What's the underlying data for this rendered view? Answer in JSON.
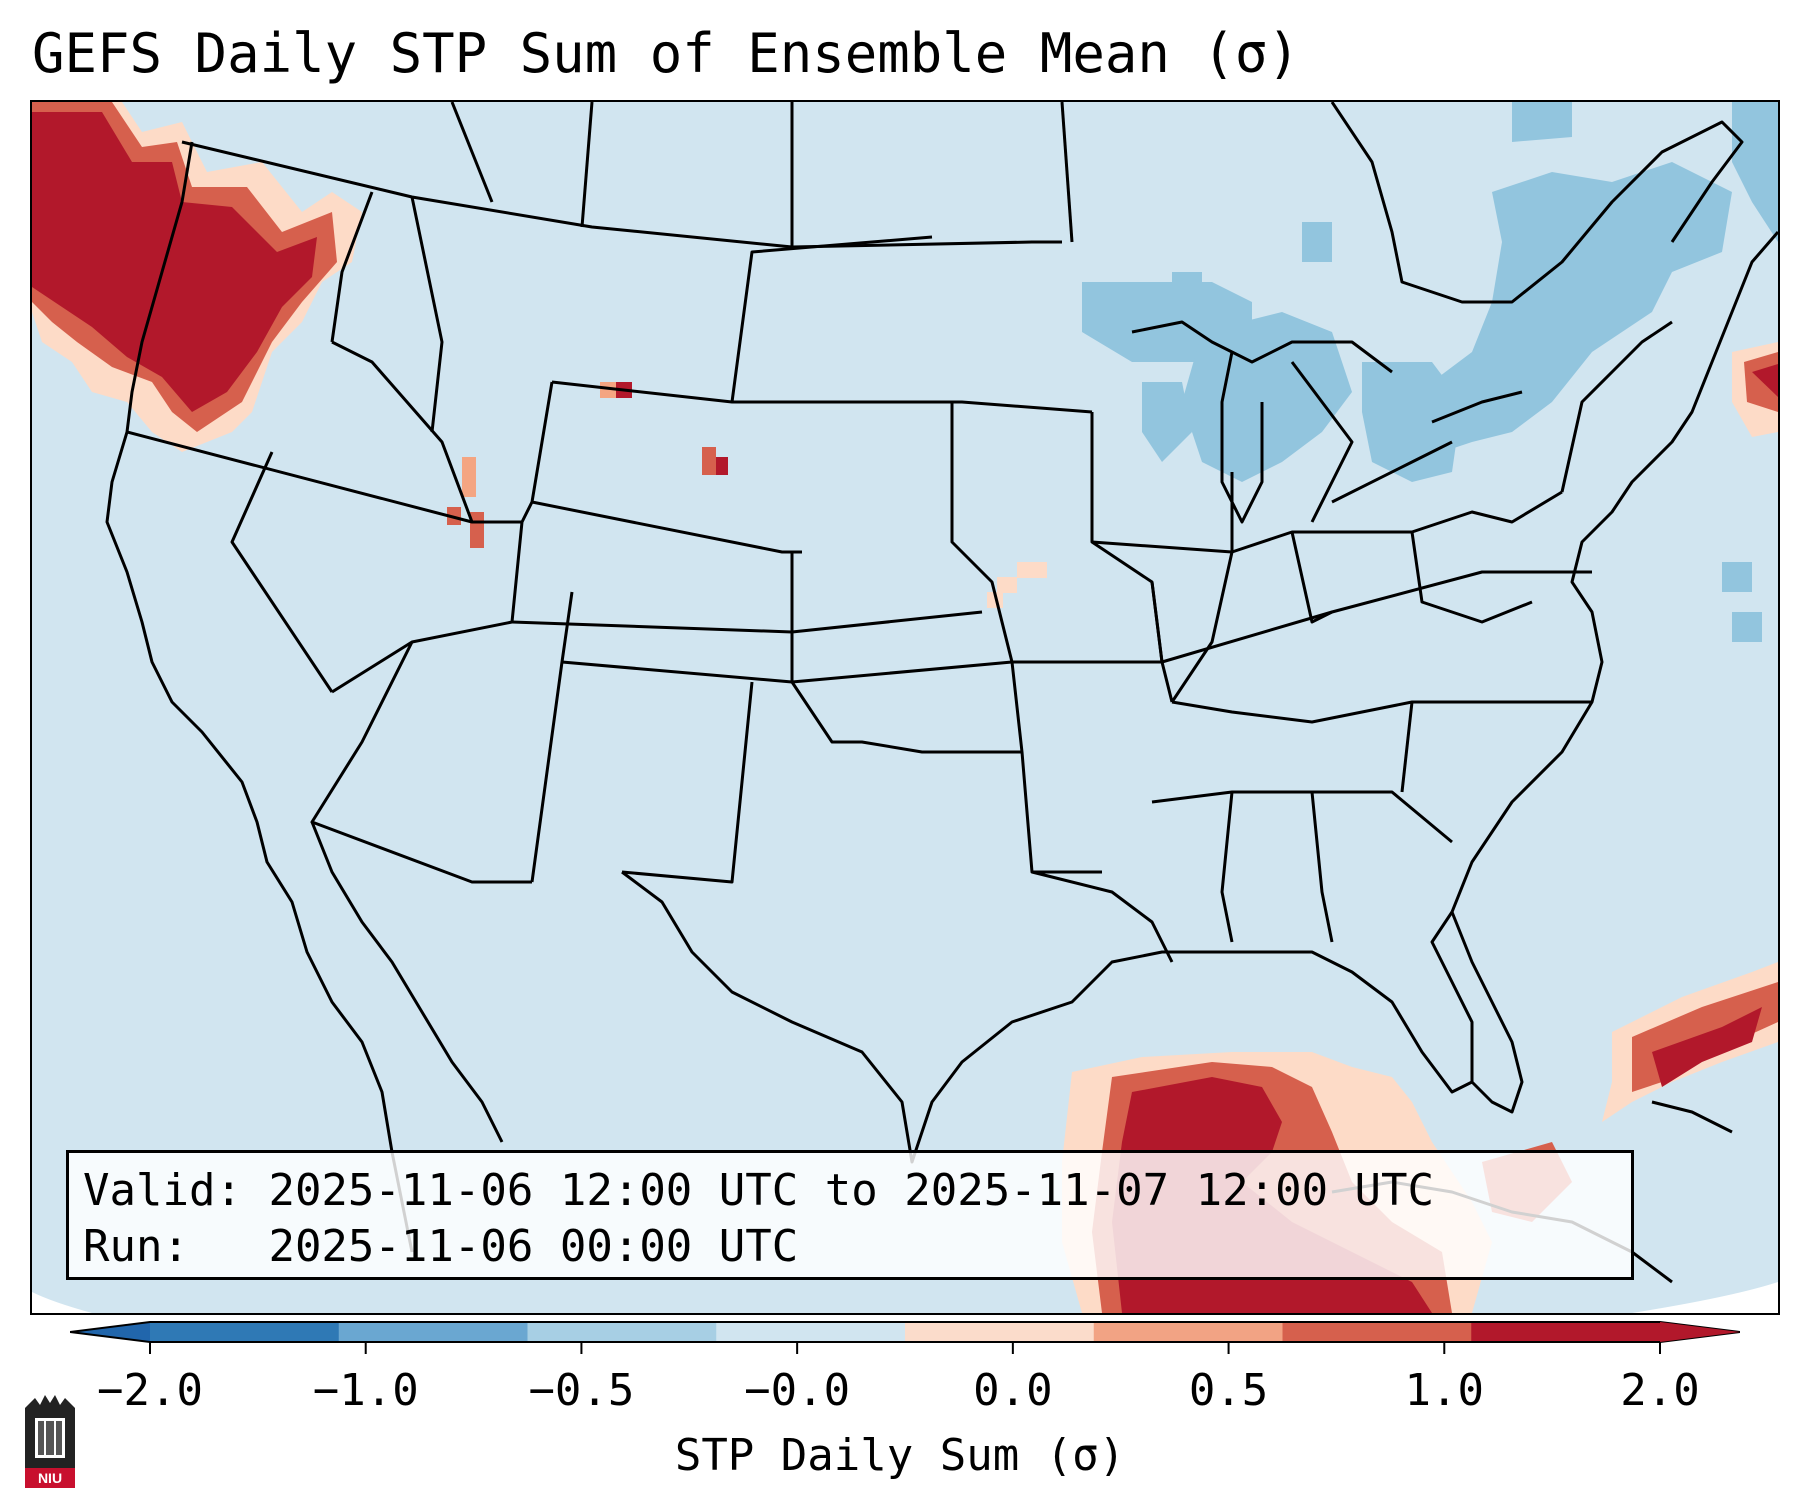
{
  "title": "GEFS Daily STP Sum of Ensemble Mean (σ)",
  "valid_label": "Valid:",
  "valid_range": "2025-11-06 12:00 UTC to 2025-11-07 12:00 UTC",
  "run_label": "Run:",
  "run_time": "2025-11-06 00:00 UTC",
  "colorbar": {
    "label": "STP Daily Sum (σ)",
    "ticks": [
      "−2.0",
      "−1.0",
      "−0.5",
      "−0.0",
      "0.0",
      "0.5",
      "1.0",
      "2.0"
    ],
    "bins": [
      {
        "color": "#2f79b5"
      },
      {
        "color": "#6aa7d1"
      },
      {
        "color": "#a7cfe4"
      },
      {
        "color": "#d1e5f0"
      },
      {
        "color": "#fbdccb"
      },
      {
        "color": "#f2a384"
      },
      {
        "color": "#d6604d"
      },
      {
        "color": "#b2182b"
      }
    ],
    "extend_low_color": "#2166ac",
    "extend_high_color": "#b2182b"
  },
  "colors": {
    "background_field": "#d1e5f0",
    "light_blue_cells": "#92c5de",
    "light_red": "#fddbc7",
    "mid_red": "#f4a582",
    "red": "#d6604d",
    "dark_red": "#b2182b",
    "borders": "#000000"
  },
  "logo": {
    "text": "NIU",
    "color": "#c8102e"
  }
}
